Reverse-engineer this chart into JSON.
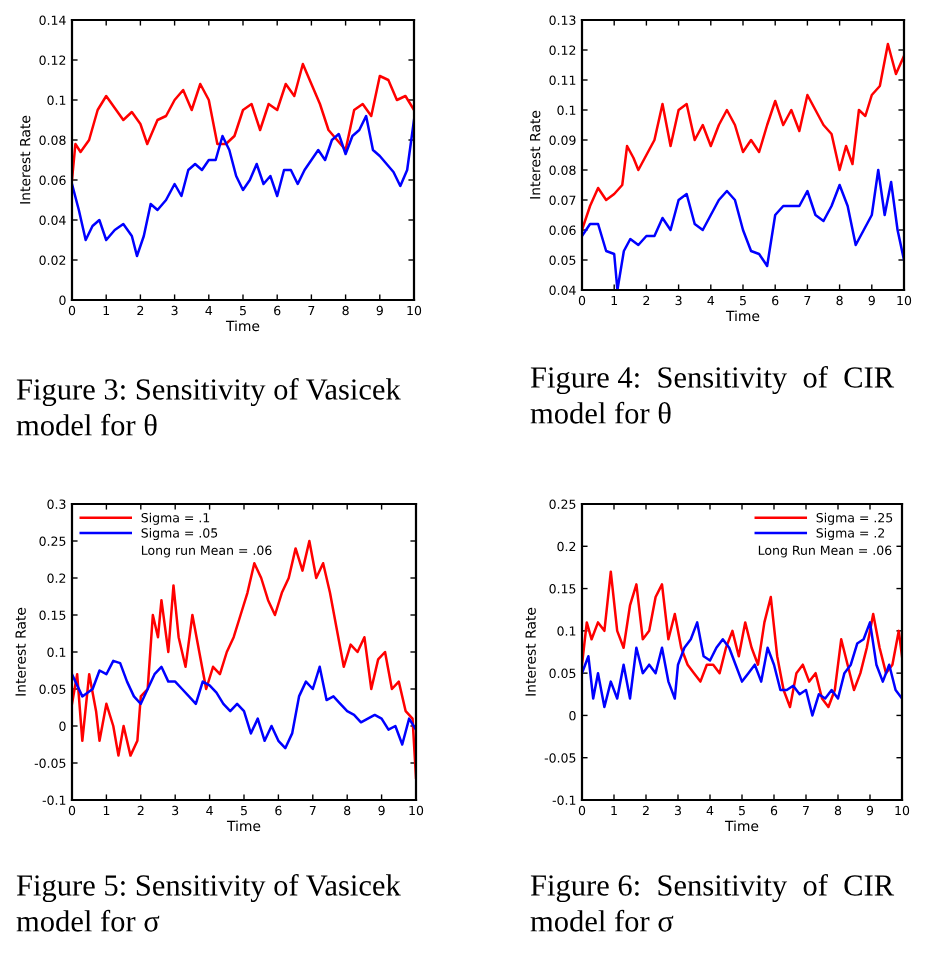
{
  "chart_data": [
    {
      "type": "line",
      "xlabel": "Time",
      "ylabel": "Interest Rate",
      "xlim": [
        0,
        10
      ],
      "ylim": [
        0,
        0.14
      ],
      "xticks": [
        0,
        1,
        2,
        3,
        4,
        5,
        6,
        7,
        8,
        9,
        10
      ],
      "yticks": [
        0,
        0.02,
        0.04,
        0.06,
        0.08,
        0.1,
        0.12,
        0.14
      ],
      "grid": false,
      "legend": false,
      "series": [
        {
          "color": "#ff0000",
          "x": [
            0,
            0.1,
            0.25,
            0.5,
            0.75,
            1,
            1.25,
            1.5,
            1.75,
            2,
            2.2,
            2.5,
            2.75,
            3,
            3.25,
            3.5,
            3.75,
            4,
            4.25,
            4.5,
            4.75,
            5,
            5.25,
            5.5,
            5.75,
            6,
            6.25,
            6.5,
            6.75,
            7,
            7.25,
            7.5,
            7.75,
            8,
            8.25,
            8.5,
            8.75,
            9,
            9.25,
            9.5,
            9.75,
            10
          ],
          "values": [
            0.06,
            0.078,
            0.074,
            0.08,
            0.095,
            0.102,
            0.096,
            0.09,
            0.094,
            0.088,
            0.078,
            0.09,
            0.092,
            0.1,
            0.105,
            0.095,
            0.108,
            0.1,
            0.078,
            0.078,
            0.082,
            0.095,
            0.098,
            0.085,
            0.098,
            0.095,
            0.108,
            0.102,
            0.118,
            0.108,
            0.098,
            0.085,
            0.08,
            0.075,
            0.095,
            0.098,
            0.092,
            0.112,
            0.11,
            0.1,
            0.102,
            0.095
          ]
        },
        {
          "color": "#0000ff",
          "x": [
            0,
            0.2,
            0.4,
            0.6,
            0.8,
            1,
            1.25,
            1.5,
            1.75,
            1.9,
            2.1,
            2.3,
            2.5,
            2.75,
            3,
            3.2,
            3.4,
            3.6,
            3.8,
            4,
            4.2,
            4.4,
            4.6,
            4.8,
            5,
            5.2,
            5.4,
            5.6,
            5.8,
            6,
            6.2,
            6.4,
            6.6,
            6.8,
            7,
            7.2,
            7.4,
            7.6,
            7.8,
            8,
            8.2,
            8.4,
            8.6,
            8.8,
            9,
            9.2,
            9.4,
            9.6,
            9.8,
            10
          ],
          "values": [
            0.058,
            0.045,
            0.03,
            0.037,
            0.04,
            0.03,
            0.035,
            0.038,
            0.032,
            0.022,
            0.032,
            0.048,
            0.045,
            0.05,
            0.058,
            0.052,
            0.065,
            0.068,
            0.065,
            0.07,
            0.07,
            0.082,
            0.075,
            0.062,
            0.055,
            0.06,
            0.068,
            0.058,
            0.062,
            0.052,
            0.065,
            0.065,
            0.058,
            0.065,
            0.07,
            0.075,
            0.07,
            0.08,
            0.083,
            0.073,
            0.082,
            0.085,
            0.092,
            0.075,
            0.072,
            0.068,
            0.064,
            0.057,
            0.065,
            0.09
          ]
        }
      ],
      "annotations": [
        "Figure 3: Sensitivity of Vasicek",
        "model for θ"
      ]
    },
    {
      "type": "line",
      "xlabel": "Time",
      "ylabel": "Interest Rate",
      "xlim": [
        0,
        10
      ],
      "ylim": [
        0.04,
        0.13
      ],
      "xticks": [
        0,
        1,
        2,
        3,
        4,
        5,
        6,
        7,
        8,
        9,
        10
      ],
      "yticks": [
        0.04,
        0.05,
        0.06,
        0.07,
        0.08,
        0.09,
        0.1,
        0.11,
        0.12,
        0.13
      ],
      "grid": false,
      "legend": false,
      "series": [
        {
          "color": "#ff0000",
          "x": [
            0,
            0.25,
            0.5,
            0.75,
            1,
            1.25,
            1.4,
            1.6,
            1.75,
            2,
            2.25,
            2.5,
            2.75,
            3,
            3.25,
            3.5,
            3.75,
            4,
            4.25,
            4.5,
            4.75,
            5,
            5.25,
            5.5,
            5.75,
            6,
            6.25,
            6.5,
            6.75,
            7,
            7.25,
            7.5,
            7.75,
            8,
            8.2,
            8.4,
            8.6,
            8.8,
            9,
            9.25,
            9.5,
            9.75,
            10
          ],
          "values": [
            0.06,
            0.068,
            0.074,
            0.07,
            0.072,
            0.075,
            0.088,
            0.084,
            0.08,
            0.085,
            0.09,
            0.102,
            0.088,
            0.1,
            0.102,
            0.09,
            0.095,
            0.088,
            0.095,
            0.1,
            0.095,
            0.086,
            0.09,
            0.086,
            0.095,
            0.103,
            0.095,
            0.1,
            0.093,
            0.105,
            0.1,
            0.095,
            0.092,
            0.08,
            0.088,
            0.082,
            0.1,
            0.098,
            0.105,
            0.108,
            0.122,
            0.112,
            0.118
          ]
        },
        {
          "color": "#0000ff",
          "x": [
            0,
            0.25,
            0.5,
            0.75,
            1,
            1.1,
            1.3,
            1.5,
            1.75,
            2,
            2.25,
            2.5,
            2.75,
            3,
            3.25,
            3.5,
            3.75,
            4,
            4.25,
            4.5,
            4.75,
            5,
            5.25,
            5.5,
            5.75,
            6,
            6.25,
            6.5,
            6.75,
            7,
            7.25,
            7.5,
            7.75,
            8,
            8.25,
            8.5,
            8.75,
            9,
            9.2,
            9.4,
            9.6,
            9.8,
            10
          ],
          "values": [
            0.058,
            0.062,
            0.062,
            0.053,
            0.052,
            0.04,
            0.053,
            0.057,
            0.055,
            0.058,
            0.058,
            0.064,
            0.06,
            0.07,
            0.072,
            0.062,
            0.06,
            0.065,
            0.07,
            0.073,
            0.07,
            0.06,
            0.053,
            0.052,
            0.048,
            0.065,
            0.068,
            0.068,
            0.068,
            0.073,
            0.065,
            0.063,
            0.068,
            0.075,
            0.068,
            0.055,
            0.06,
            0.065,
            0.08,
            0.065,
            0.076,
            0.06,
            0.05
          ]
        }
      ],
      "annotations": [
        "Figure 4:  Sensitivity  of  CIR",
        "model for θ"
      ]
    },
    {
      "type": "line",
      "xlabel": "Time",
      "ylabel": "Interest Rate",
      "xlim": [
        0,
        10
      ],
      "ylim": [
        -0.1,
        0.3
      ],
      "xticks": [
        0,
        1,
        2,
        3,
        4,
        5,
        6,
        7,
        8,
        9,
        10
      ],
      "yticks": [
        -0.1,
        -0.05,
        0,
        0.05,
        0.1,
        0.15,
        0.2,
        0.25,
        0.3
      ],
      "grid": false,
      "legend": "top left",
      "series": [
        {
          "name": "Sigma = .1",
          "color": "#ff0000",
          "x": [
            0,
            0.15,
            0.3,
            0.5,
            0.7,
            0.8,
            1,
            1.2,
            1.35,
            1.5,
            1.7,
            1.9,
            2,
            2.2,
            2.35,
            2.5,
            2.6,
            2.8,
            2.95,
            3.1,
            3.3,
            3.5,
            3.7,
            3.9,
            4.1,
            4.3,
            4.5,
            4.7,
            4.9,
            5.1,
            5.3,
            5.5,
            5.7,
            5.9,
            6.1,
            6.3,
            6.5,
            6.7,
            6.9,
            7.1,
            7.3,
            7.5,
            7.7,
            7.9,
            8.1,
            8.3,
            8.5,
            8.7,
            8.9,
            9.1,
            9.3,
            9.5,
            9.7,
            9.9,
            10
          ],
          "values": [
            0.03,
            0.07,
            -0.02,
            0.07,
            0.02,
            -0.02,
            0.03,
            0.0,
            -0.04,
            0.0,
            -0.04,
            -0.02,
            0.04,
            0.05,
            0.15,
            0.12,
            0.17,
            0.1,
            0.19,
            0.12,
            0.08,
            0.15,
            0.1,
            0.05,
            0.08,
            0.07,
            0.1,
            0.12,
            0.15,
            0.18,
            0.22,
            0.2,
            0.17,
            0.15,
            0.18,
            0.2,
            0.24,
            0.21,
            0.25,
            0.2,
            0.22,
            0.18,
            0.13,
            0.08,
            0.11,
            0.1,
            0.12,
            0.05,
            0.09,
            0.1,
            0.05,
            0.06,
            0.02,
            0.01,
            -0.07
          ]
        },
        {
          "name": "Sigma = .05",
          "color": "#0000ff",
          "x": [
            0,
            0.3,
            0.6,
            0.8,
            1,
            1.2,
            1.4,
            1.6,
            1.8,
            2,
            2.2,
            2.4,
            2.6,
            2.8,
            3,
            3.2,
            3.4,
            3.6,
            3.8,
            4,
            4.2,
            4.4,
            4.6,
            4.8,
            5,
            5.2,
            5.4,
            5.6,
            5.8,
            6,
            6.2,
            6.4,
            6.6,
            6.8,
            7,
            7.2,
            7.4,
            7.6,
            7.8,
            8,
            8.2,
            8.4,
            8.6,
            8.8,
            9,
            9.2,
            9.4,
            9.6,
            9.8,
            10
          ],
          "values": [
            0.07,
            0.04,
            0.05,
            0.075,
            0.07,
            0.088,
            0.085,
            0.06,
            0.04,
            0.03,
            0.05,
            0.07,
            0.08,
            0.06,
            0.06,
            0.05,
            0.04,
            0.03,
            0.06,
            0.055,
            0.045,
            0.03,
            0.02,
            0.03,
            0.02,
            -0.01,
            0.01,
            -0.02,
            0.0,
            -0.02,
            -0.03,
            -0.01,
            0.04,
            0.06,
            0.05,
            0.08,
            0.035,
            0.04,
            0.03,
            0.02,
            0.015,
            0.005,
            0.01,
            0.015,
            0.01,
            -0.005,
            0.0,
            -0.025,
            0.01,
            -0.005
          ]
        }
      ],
      "annotations": [
        "Long run Mean = .06",
        "Figure 5: Sensitivity of Vasicek",
        "model for σ"
      ]
    },
    {
      "type": "line",
      "xlabel": "Time",
      "ylabel": "Interest Rate",
      "xlim": [
        0,
        10
      ],
      "ylim": [
        -0.1,
        0.25
      ],
      "xticks": [
        0,
        1,
        2,
        3,
        4,
        5,
        6,
        7,
        8,
        9,
        10
      ],
      "yticks": [
        -0.1,
        -0.05,
        0,
        0.05,
        0.1,
        0.15,
        0.2,
        0.25
      ],
      "grid": false,
      "legend": "top right",
      "series": [
        {
          "name": "Sigma = .25",
          "color": "#ff0000",
          "x": [
            0,
            0.15,
            0.3,
            0.5,
            0.7,
            0.9,
            1.1,
            1.3,
            1.5,
            1.7,
            1.9,
            2.1,
            2.3,
            2.5,
            2.7,
            2.9,
            3.1,
            3.3,
            3.5,
            3.7,
            3.9,
            4.1,
            4.3,
            4.5,
            4.7,
            4.9,
            5.1,
            5.3,
            5.5,
            5.7,
            5.9,
            6.1,
            6.3,
            6.5,
            6.7,
            6.9,
            7.1,
            7.3,
            7.5,
            7.7,
            7.9,
            8.1,
            8.3,
            8.5,
            8.7,
            8.9,
            9.1,
            9.3,
            9.5,
            9.7,
            9.9,
            10
          ],
          "values": [
            0.06,
            0.11,
            0.09,
            0.11,
            0.1,
            0.17,
            0.1,
            0.08,
            0.13,
            0.155,
            0.09,
            0.1,
            0.14,
            0.155,
            0.09,
            0.12,
            0.08,
            0.06,
            0.05,
            0.04,
            0.06,
            0.06,
            0.05,
            0.08,
            0.1,
            0.07,
            0.11,
            0.08,
            0.06,
            0.11,
            0.14,
            0.07,
            0.03,
            0.01,
            0.05,
            0.06,
            0.04,
            0.05,
            0.02,
            0.01,
            0.03,
            0.09,
            0.06,
            0.03,
            0.05,
            0.08,
            0.12,
            0.08,
            0.05,
            0.06,
            0.1,
            0.07
          ]
        },
        {
          "name": "Sigma = .2",
          "color": "#0000ff",
          "x": [
            0,
            0.2,
            0.35,
            0.5,
            0.7,
            0.9,
            1.1,
            1.3,
            1.5,
            1.7,
            1.9,
            2.1,
            2.3,
            2.5,
            2.7,
            2.9,
            3.0,
            3.2,
            3.4,
            3.6,
            3.8,
            4.0,
            4.2,
            4.4,
            4.6,
            4.8,
            5.0,
            5.2,
            5.4,
            5.6,
            5.8,
            6.0,
            6.2,
            6.4,
            6.6,
            6.8,
            7.0,
            7.2,
            7.4,
            7.6,
            7.8,
            8.0,
            8.2,
            8.4,
            8.6,
            8.8,
            9.0,
            9.2,
            9.4,
            9.6,
            9.8,
            10
          ],
          "values": [
            0.05,
            0.07,
            0.02,
            0.05,
            0.01,
            0.04,
            0.02,
            0.06,
            0.02,
            0.08,
            0.05,
            0.06,
            0.05,
            0.08,
            0.04,
            0.02,
            0.06,
            0.08,
            0.09,
            0.11,
            0.07,
            0.065,
            0.08,
            0.09,
            0.08,
            0.06,
            0.04,
            0.05,
            0.06,
            0.04,
            0.08,
            0.06,
            0.03,
            0.03,
            0.035,
            0.025,
            0.03,
            0.0,
            0.025,
            0.02,
            0.03,
            0.02,
            0.05,
            0.06,
            0.085,
            0.09,
            0.11,
            0.06,
            0.04,
            0.06,
            0.03,
            0.02
          ]
        }
      ],
      "annotations": [
        "Long Run Mean = .06",
        "Figure 6:  Sensitivity  of  CIR",
        "model for σ"
      ]
    }
  ]
}
